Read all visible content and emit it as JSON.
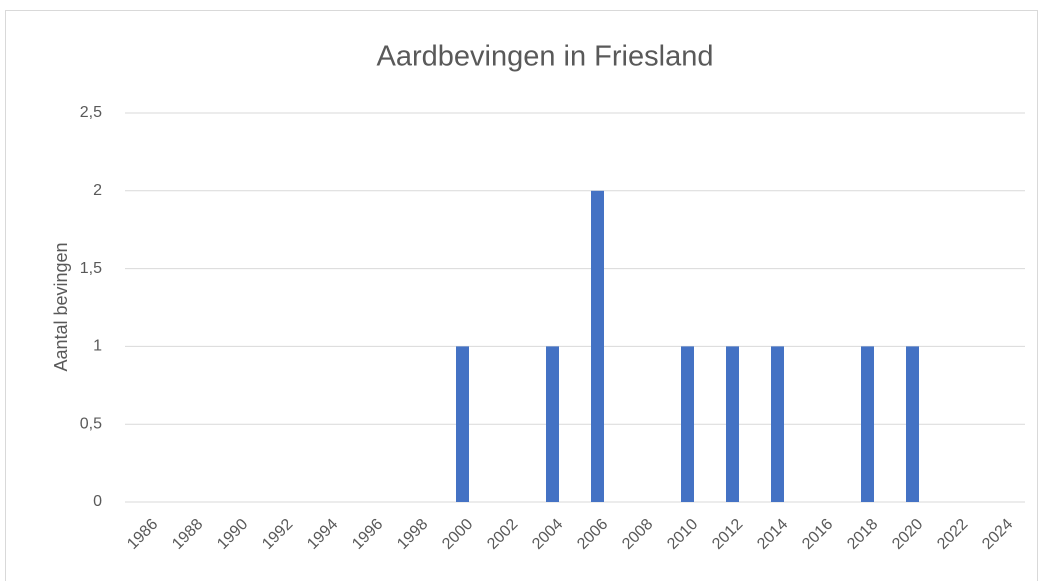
{
  "chart_data": {
    "type": "bar",
    "title": "Aardbevingen in Friesland",
    "ylabel": "Aantal bevingen",
    "categories": [
      "1986",
      "1988",
      "1990",
      "1992",
      "1994",
      "1996",
      "1998",
      "2000",
      "2002",
      "2004",
      "2006",
      "2008",
      "2010",
      "2012",
      "2014",
      "2016",
      "2018",
      "2020",
      "2022",
      "2024"
    ],
    "values": [
      0,
      0,
      0,
      0,
      0,
      0,
      0,
      1,
      0,
      1,
      2,
      0,
      1,
      1,
      1,
      0,
      1,
      1,
      0,
      0
    ],
    "color": "#4472c4",
    "ylim": [
      0,
      2.5
    ],
    "yticks": [
      0,
      {
        "value": 0.5,
        "label": "0,5"
      },
      1,
      {
        "value": 1.5,
        "label": "1,5"
      },
      2,
      {
        "value": 2.5,
        "label": "2,5"
      }
    ],
    "grid": true
  }
}
